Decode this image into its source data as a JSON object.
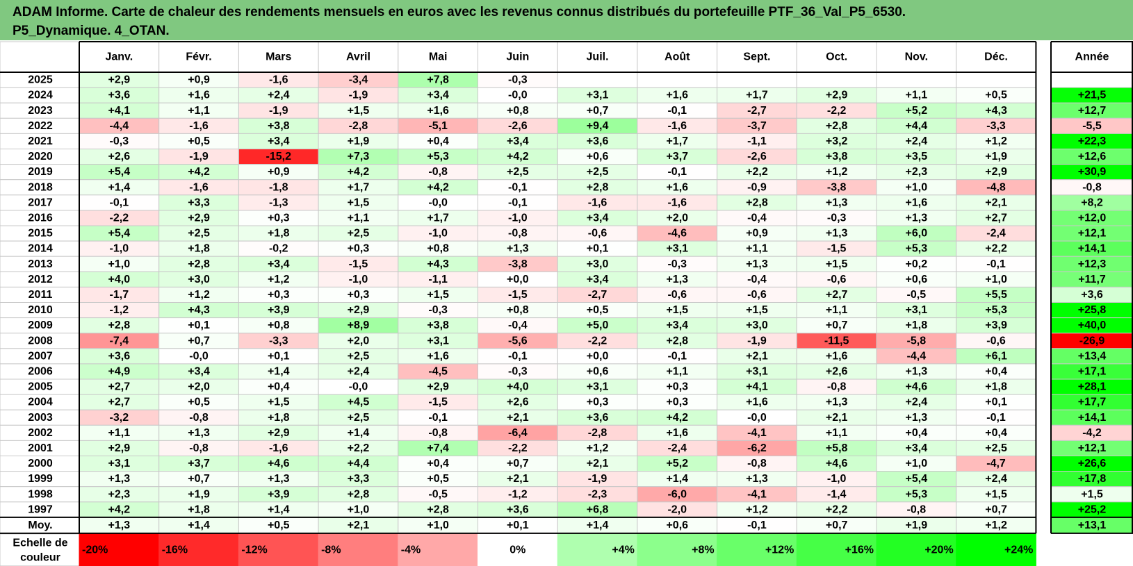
{
  "title": {
    "line1": "ADAM Informe. Carte de chaleur des rendements mensuels en euros avec les revenus connus distribués du portefeuille PTF_36_Val_P5_6530.",
    "line2": "P5_Dynamique. 4_OTAN."
  },
  "chart_data": {
    "type": "heatmap",
    "columns": [
      "Janv.",
      "Févr.",
      "Mars",
      "Avril",
      "Mai",
      "Juin",
      "Juil.",
      "Août",
      "Sept.",
      "Oct.",
      "Nov.",
      "Déc."
    ],
    "year_column": "Année",
    "rows": [
      {
        "year": "2025",
        "months": [
          "+2,9",
          "+0,9",
          "-1,6",
          "-3,4",
          "+7,8",
          "-0,3",
          "",
          "",
          "",
          "",
          "",
          ""
        ],
        "annual": ""
      },
      {
        "year": "2024",
        "months": [
          "+3,6",
          "+1,6",
          "+2,4",
          "-1,9",
          "+3,4",
          "-0,0",
          "+3,1",
          "+1,6",
          "+1,7",
          "+2,9",
          "+1,1",
          "+0,5"
        ],
        "annual": "+21,5"
      },
      {
        "year": "2023",
        "months": [
          "+4,1",
          "+1,1",
          "-1,9",
          "+1,5",
          "+1,6",
          "+0,8",
          "+0,7",
          "-0,1",
          "-2,7",
          "-2,2",
          "+5,2",
          "+4,3"
        ],
        "annual": "+12,7"
      },
      {
        "year": "2022",
        "months": [
          "-4,4",
          "-1,6",
          "+3,8",
          "-2,8",
          "-5,1",
          "-2,6",
          "+9,4",
          "-1,6",
          "-3,7",
          "+2,8",
          "+4,4",
          "-3,3"
        ],
        "annual": "-5,5"
      },
      {
        "year": "2021",
        "months": [
          "-0,3",
          "+0,5",
          "+3,4",
          "+1,9",
          "+0,4",
          "+3,4",
          "+3,6",
          "+1,7",
          "-1,1",
          "+3,2",
          "+2,4",
          "+1,2"
        ],
        "annual": "+22,3"
      },
      {
        "year": "2020",
        "months": [
          "+2,6",
          "-1,9",
          "-15,2",
          "+7,3",
          "+5,3",
          "+4,2",
          "+0,6",
          "+3,7",
          "-2,6",
          "+3,8",
          "+3,5",
          "+1,9"
        ],
        "annual": "+12,6"
      },
      {
        "year": "2019",
        "months": [
          "+5,4",
          "+4,2",
          "+0,9",
          "+4,2",
          "-0,8",
          "+2,5",
          "+2,5",
          "-0,1",
          "+2,2",
          "+1,2",
          "+2,3",
          "+2,9"
        ],
        "annual": "+30,9"
      },
      {
        "year": "2018",
        "months": [
          "+1,4",
          "-1,6",
          "-1,8",
          "+1,7",
          "+4,2",
          "-0,1",
          "+2,8",
          "+1,6",
          "-0,9",
          "-3,8",
          "+1,0",
          "-4,8"
        ],
        "annual": "-0,8"
      },
      {
        "year": "2017",
        "months": [
          "-0,1",
          "+3,3",
          "-1,3",
          "+1,5",
          "-0,0",
          "-0,1",
          "-1,6",
          "-1,6",
          "+2,8",
          "+1,3",
          "+1,6",
          "+2,1"
        ],
        "annual": "+8,2"
      },
      {
        "year": "2016",
        "months": [
          "-2,2",
          "+2,9",
          "+0,3",
          "+1,1",
          "+1,7",
          "-1,0",
          "+3,4",
          "+2,0",
          "-0,4",
          "-0,3",
          "+1,3",
          "+2,7"
        ],
        "annual": "+12,0"
      },
      {
        "year": "2015",
        "months": [
          "+5,4",
          "+2,5",
          "+1,8",
          "+2,5",
          "-1,0",
          "-0,8",
          "-0,6",
          "-4,6",
          "+0,9",
          "+1,3",
          "+6,0",
          "-2,4"
        ],
        "annual": "+12,1"
      },
      {
        "year": "2014",
        "months": [
          "-1,0",
          "+1,8",
          "-0,2",
          "+0,3",
          "+0,8",
          "+1,3",
          "+0,1",
          "+3,1",
          "+1,1",
          "-1,5",
          "+5,3",
          "+2,2"
        ],
        "annual": "+14,1"
      },
      {
        "year": "2013",
        "months": [
          "+1,0",
          "+2,8",
          "+3,4",
          "-1,5",
          "+4,3",
          "-3,8",
          "+3,0",
          "-0,3",
          "+1,3",
          "+1,5",
          "+0,2",
          "-0,1"
        ],
        "annual": "+12,3"
      },
      {
        "year": "2012",
        "months": [
          "+4,0",
          "+3,0",
          "+1,2",
          "-1,0",
          "-1,1",
          "+0,0",
          "+3,4",
          "+1,3",
          "-0,4",
          "-0,6",
          "+0,6",
          "+1,0"
        ],
        "annual": "+11,7"
      },
      {
        "year": "2011",
        "months": [
          "-1,7",
          "+1,2",
          "+0,3",
          "+0,3",
          "+1,5",
          "-1,5",
          "-2,7",
          "-0,6",
          "-0,6",
          "+2,7",
          "-0,5",
          "+5,5"
        ],
        "annual": "+3,6"
      },
      {
        "year": "2010",
        "months": [
          "-1,2",
          "+4,3",
          "+3,9",
          "+2,9",
          "-0,3",
          "+0,8",
          "+0,5",
          "+1,5",
          "+1,5",
          "+1,1",
          "+3,1",
          "+5,3"
        ],
        "annual": "+25,8"
      },
      {
        "year": "2009",
        "months": [
          "+2,8",
          "+0,1",
          "+0,8",
          "+8,9",
          "+3,8",
          "-0,4",
          "+5,0",
          "+3,4",
          "+3,0",
          "+0,7",
          "+1,8",
          "+3,9"
        ],
        "annual": "+40,0"
      },
      {
        "year": "2008",
        "months": [
          "-7,4",
          "+0,7",
          "-3,3",
          "+2,0",
          "+3,1",
          "-5,6",
          "-2,2",
          "+2,8",
          "-1,9",
          "-11,5",
          "-5,8",
          "-0,6"
        ],
        "annual": "-26,9"
      },
      {
        "year": "2007",
        "months": [
          "+3,6",
          "-0,0",
          "+0,1",
          "+2,5",
          "+1,6",
          "-0,1",
          "+0,0",
          "-0,1",
          "+2,1",
          "+1,6",
          "-4,4",
          "+6,1"
        ],
        "annual": "+13,4"
      },
      {
        "year": "2006",
        "months": [
          "+4,9",
          "+3,4",
          "+1,4",
          "+2,4",
          "-4,5",
          "-0,3",
          "+0,6",
          "+1,1",
          "+3,1",
          "+2,6",
          "+1,3",
          "+0,4"
        ],
        "annual": "+17,1"
      },
      {
        "year": "2005",
        "months": [
          "+2,7",
          "+2,0",
          "+0,4",
          "-0,0",
          "+2,9",
          "+4,0",
          "+3,1",
          "+0,3",
          "+4,1",
          "-0,8",
          "+4,6",
          "+1,8"
        ],
        "annual": "+28,1"
      },
      {
        "year": "2004",
        "months": [
          "+2,7",
          "+0,5",
          "+1,5",
          "+4,5",
          "-1,5",
          "+2,6",
          "+0,3",
          "+0,3",
          "+1,6",
          "+1,3",
          "+2,4",
          "+0,1"
        ],
        "annual": "+17,7"
      },
      {
        "year": "2003",
        "months": [
          "-3,2",
          "-0,8",
          "+1,8",
          "+2,5",
          "-0,1",
          "+2,1",
          "+3,6",
          "+4,2",
          "-0,0",
          "+2,1",
          "+1,3",
          "-0,1"
        ],
        "annual": "+14,1"
      },
      {
        "year": "2002",
        "months": [
          "+1,1",
          "+1,3",
          "+2,9",
          "+1,4",
          "-0,8",
          "-6,4",
          "-2,8",
          "+1,6",
          "-4,1",
          "+1,1",
          "+0,4",
          "+0,4"
        ],
        "annual": "-4,2"
      },
      {
        "year": "2001",
        "months": [
          "+2,9",
          "-0,8",
          "-1,6",
          "+2,2",
          "+7,4",
          "-2,2",
          "+1,2",
          "-2,4",
          "-6,2",
          "+5,8",
          "+3,4",
          "+2,5"
        ],
        "annual": "+12,1"
      },
      {
        "year": "2000",
        "months": [
          "+3,1",
          "+3,7",
          "+4,6",
          "+4,4",
          "+0,4",
          "+0,7",
          "+2,1",
          "+5,2",
          "-0,8",
          "+4,6",
          "+1,0",
          "-4,7"
        ],
        "annual": "+26,6"
      },
      {
        "year": "1999",
        "months": [
          "+1,3",
          "+0,7",
          "+1,3",
          "+3,3",
          "+0,5",
          "+2,1",
          "-1,9",
          "+1,4",
          "+1,3",
          "-1,0",
          "+5,4",
          "+2,4"
        ],
        "annual": "+17,8"
      },
      {
        "year": "1998",
        "months": [
          "+2,3",
          "+1,9",
          "+3,9",
          "+2,8",
          "-0,5",
          "-1,2",
          "-2,3",
          "-6,0",
          "-4,1",
          "-1,4",
          "+5,3",
          "+1,5"
        ],
        "annual": "+1,5"
      },
      {
        "year": "1997",
        "months": [
          "+4,2",
          "+1,8",
          "+1,4",
          "+1,0",
          "+2,8",
          "+3,6",
          "+6,8",
          "-2,0",
          "+1,2",
          "+2,2",
          "-0,8",
          "+0,7"
        ],
        "annual": "+25,2"
      }
    ],
    "average": {
      "label": "Moy.",
      "months": [
        "+1,3",
        "+1,4",
        "+0,5",
        "+2,1",
        "+1,0",
        "+0,1",
        "+1,4",
        "+0,6",
        "-0,1",
        "+0,7",
        "+1,9",
        "+1,2"
      ],
      "annual": "+13,1"
    },
    "legend": {
      "label_line1": "Echelle de",
      "label_line2": "couleur",
      "steps": [
        "-20%",
        "-16%",
        "-12%",
        "-8%",
        "-4%",
        "0%",
        "+4%",
        "+8%",
        "+12%",
        "+16%",
        "+20%",
        "+24%"
      ],
      "step_values": [
        -20,
        -16,
        -12,
        -8,
        -4,
        0,
        4,
        8,
        12,
        16,
        20,
        24
      ]
    },
    "colors": {
      "title_bg": "#80c880",
      "negative_max": "#ff0000",
      "positive_max": "#00ff00",
      "neutral": "#ffffff"
    }
  }
}
